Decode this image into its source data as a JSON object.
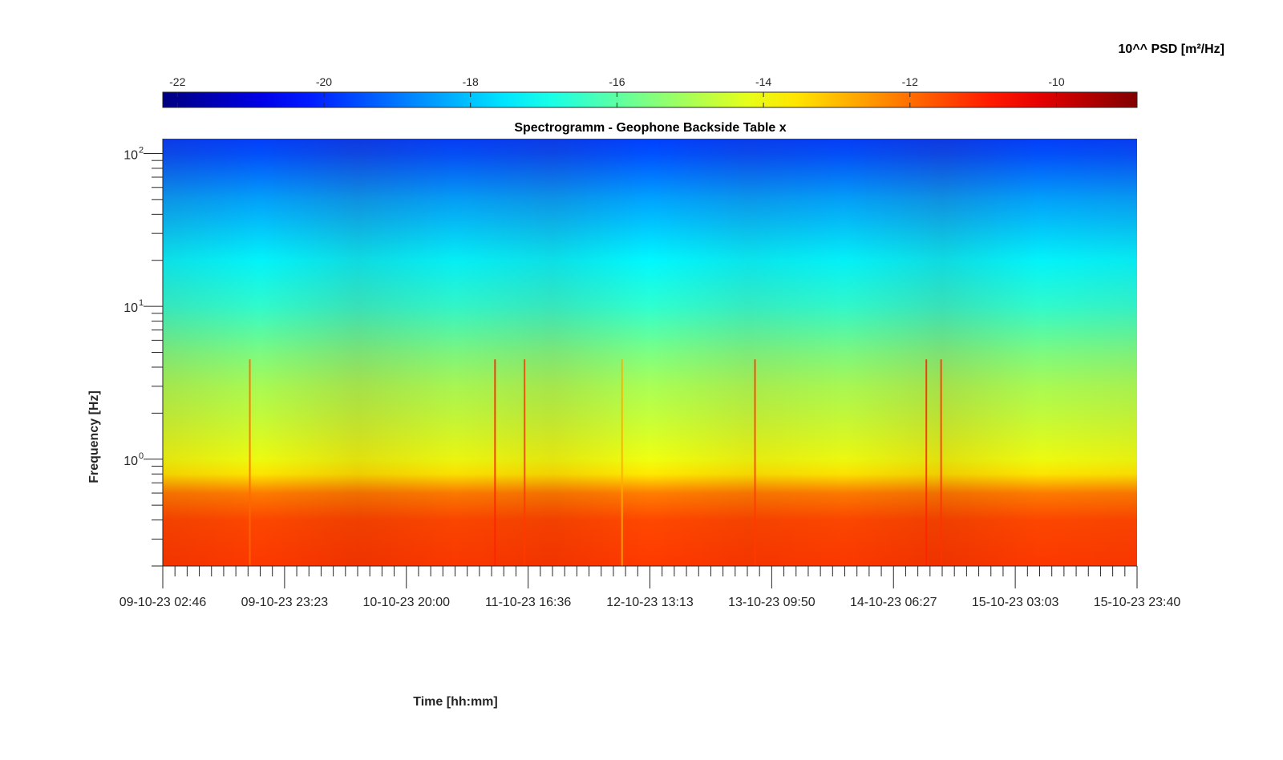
{
  "chart_data": {
    "type": "heatmap",
    "title": "Spectrogramm - Geophone Backside Table x",
    "xlabel": "Time [hh:mm]",
    "ylabel": "Frequency [Hz]",
    "x_tick_labels": [
      "09-10-23 02:46",
      "09-10-23 23:23",
      "10-10-23 20:00",
      "11-10-23 16:36",
      "12-10-23 13:13",
      "13-10-23 09:50",
      "14-10-23 06:27",
      "15-10-23 03:03",
      "15-10-23 23:40"
    ],
    "y_scale": "log",
    "ylim": [
      0.2,
      125
    ],
    "y_major_ticks": [
      {
        "value": 1,
        "base": "10",
        "exp": "0"
      },
      {
        "value": 10,
        "base": "10",
        "exp": "1"
      },
      {
        "value": 100,
        "base": "10",
        "exp": "2"
      }
    ],
    "colorbar": {
      "label": "10^^ PSD [m²/Hz]",
      "colormap": "jet",
      "range": [
        -22.2,
        -8.9
      ],
      "ticks": [
        -22,
        -20,
        -18,
        -16,
        -14,
        -12,
        -10
      ],
      "tick_labels": [
        "-22",
        "-20",
        "-18",
        "-16",
        "-14",
        "-12",
        "-10"
      ]
    },
    "psd_profile_log10": {
      "frequency_hz": [
        0.2,
        0.4,
        0.6,
        0.8,
        1.0,
        2.0,
        3.0,
        5.0,
        10.0,
        20.0,
        50.0,
        100.0,
        125.0
      ],
      "value": [
        -11.3,
        -11.5,
        -12.2,
        -13.6,
        -14.1,
        -14.7,
        -15.0,
        -15.6,
        -16.6,
        -17.3,
        -18.4,
        -19.5,
        -19.7
      ]
    },
    "events": [
      {
        "time": "09-10-23 17:30",
        "peak_log10_psd": -11.9
      },
      {
        "time": "11-10-23 11:00",
        "peak_log10_psd": -11.0
      },
      {
        "time": "11-10-23 16:00",
        "peak_log10_psd": -11.3
      },
      {
        "time": "12-10-23 08:30",
        "peak_log10_psd": -12.8
      },
      {
        "time": "13-10-23 07:00",
        "peak_log10_psd": -11.3
      },
      {
        "time": "14-10-23 12:00",
        "peak_log10_psd": -11.0
      },
      {
        "time": "14-10-23 14:30",
        "peak_log10_psd": -11.2
      }
    ]
  }
}
